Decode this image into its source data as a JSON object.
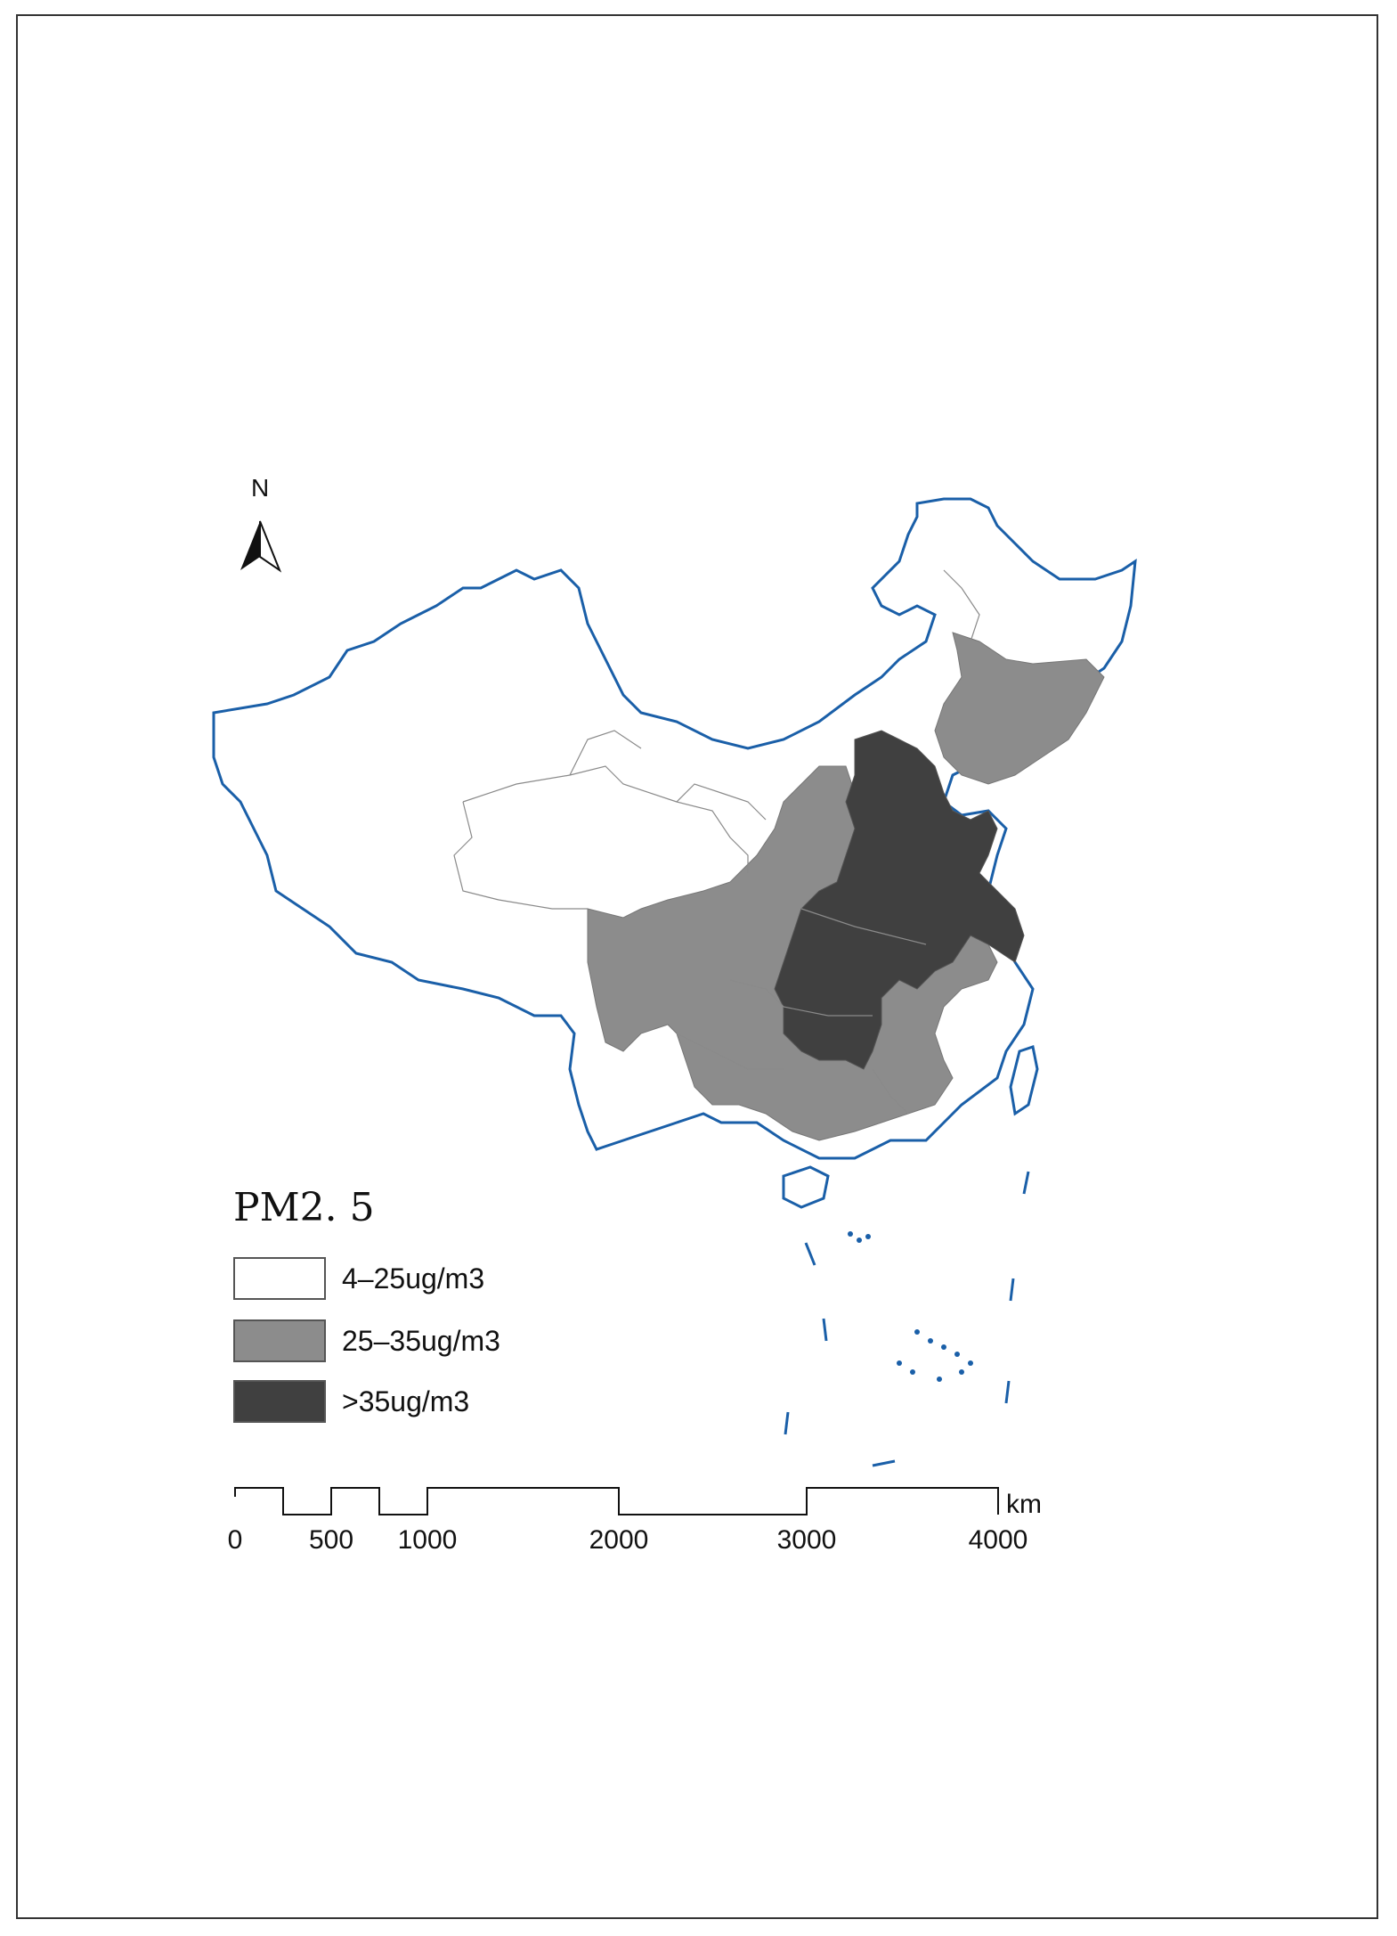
{
  "map": {
    "north_label": "N",
    "boundary_color": "#1a5fa8",
    "province_line_color": "#8a8a8a"
  },
  "legend": {
    "title": "PM2. 5",
    "classes": [
      {
        "label": "4–25ug/m3",
        "color": "#ffffff"
      },
      {
        "label": "25–35ug/m3",
        "color": "#8c8c8c"
      },
      {
        "label": ">35ug/m3",
        "color": "#404040"
      }
    ]
  },
  "scale_bar": {
    "unit": "km",
    "ticks": [
      "0",
      "500",
      "1000",
      "2000",
      "3000",
      "4000"
    ]
  }
}
